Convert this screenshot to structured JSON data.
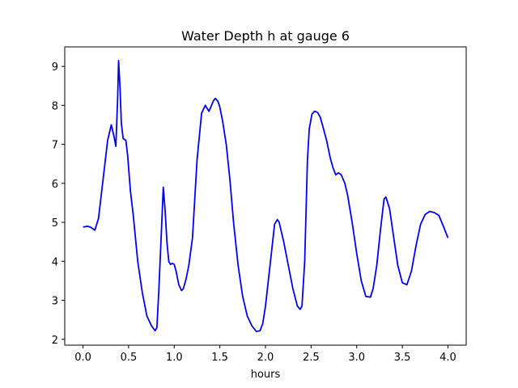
{
  "chart_data": {
    "type": "line",
    "title": "Water Depth h at gauge 6",
    "xlabel": "hours",
    "ylabel": "",
    "xlim": [
      -0.2,
      4.2
    ],
    "ylim": [
      1.85,
      9.5
    ],
    "xticks": [
      0.0,
      0.5,
      1.0,
      1.5,
      2.0,
      2.5,
      3.0,
      3.5,
      4.0
    ],
    "xtick_labels": [
      "0.0",
      "0.5",
      "1.0",
      "1.5",
      "2.0",
      "2.5",
      "3.0",
      "3.5",
      "4.0"
    ],
    "yticks": [
      2,
      3,
      4,
      5,
      6,
      7,
      8,
      9
    ],
    "ytick_labels": [
      "2",
      "3",
      "4",
      "5",
      "6",
      "7",
      "8",
      "9"
    ],
    "grid": false,
    "series": [
      {
        "color": "#0000ff",
        "x": [
          0.0,
          0.05,
          0.08,
          0.13,
          0.17,
          0.22,
          0.27,
          0.31,
          0.34,
          0.36,
          0.38,
          0.39,
          0.405,
          0.42,
          0.44,
          0.47,
          0.49,
          0.52,
          0.55,
          0.6,
          0.65,
          0.7,
          0.75,
          0.79,
          0.81,
          0.83,
          0.86,
          0.88,
          0.9,
          0.92,
          0.94,
          0.96,
          0.98,
          1.0,
          1.02,
          1.05,
          1.08,
          1.1,
          1.13,
          1.16,
          1.2,
          1.25,
          1.3,
          1.34,
          1.38,
          1.4,
          1.43,
          1.45,
          1.48,
          1.5,
          1.53,
          1.57,
          1.61,
          1.65,
          1.7,
          1.75,
          1.8,
          1.85,
          1.9,
          1.94,
          1.97,
          2.0,
          2.05,
          2.1,
          2.13,
          2.15,
          2.2,
          2.25,
          2.3,
          2.35,
          2.38,
          2.4,
          2.43,
          2.46,
          2.48,
          2.51,
          2.54,
          2.57,
          2.6,
          2.63,
          2.67,
          2.71,
          2.74,
          2.77,
          2.8,
          2.83,
          2.87,
          2.9,
          2.95,
          3.0,
          3.05,
          3.1,
          3.15,
          3.18,
          3.22,
          3.26,
          3.3,
          3.32,
          3.36,
          3.4,
          3.45,
          3.5,
          3.55,
          3.6,
          3.65,
          3.7,
          3.75,
          3.8,
          3.85,
          3.9,
          3.95,
          4.0
        ],
        "y": [
          4.88,
          4.9,
          4.88,
          4.8,
          5.1,
          6.1,
          7.1,
          7.5,
          7.2,
          6.95,
          8.2,
          9.15,
          8.5,
          7.55,
          7.15,
          7.1,
          6.7,
          5.8,
          5.2,
          4.0,
          3.2,
          2.6,
          2.35,
          2.22,
          2.3,
          3.2,
          4.8,
          5.9,
          5.3,
          4.5,
          4.0,
          3.92,
          3.95,
          3.92,
          3.75,
          3.4,
          3.25,
          3.3,
          3.55,
          3.9,
          4.6,
          6.6,
          7.8,
          8.0,
          7.85,
          7.95,
          8.12,
          8.18,
          8.1,
          7.95,
          7.6,
          7.0,
          6.1,
          5.0,
          3.9,
          3.1,
          2.6,
          2.35,
          2.2,
          2.22,
          2.4,
          2.85,
          3.9,
          4.95,
          5.07,
          5.0,
          4.5,
          3.9,
          3.3,
          2.85,
          2.77,
          2.85,
          4.0,
          6.6,
          7.4,
          7.78,
          7.85,
          7.82,
          7.7,
          7.45,
          7.1,
          6.65,
          6.4,
          6.22,
          6.27,
          6.22,
          6.0,
          5.7,
          5.0,
          4.2,
          3.5,
          3.1,
          3.08,
          3.3,
          3.9,
          4.8,
          5.6,
          5.65,
          5.35,
          4.7,
          3.9,
          3.45,
          3.4,
          3.75,
          4.4,
          4.95,
          5.2,
          5.28,
          5.25,
          5.18,
          4.9,
          4.6
        ]
      }
    ]
  }
}
